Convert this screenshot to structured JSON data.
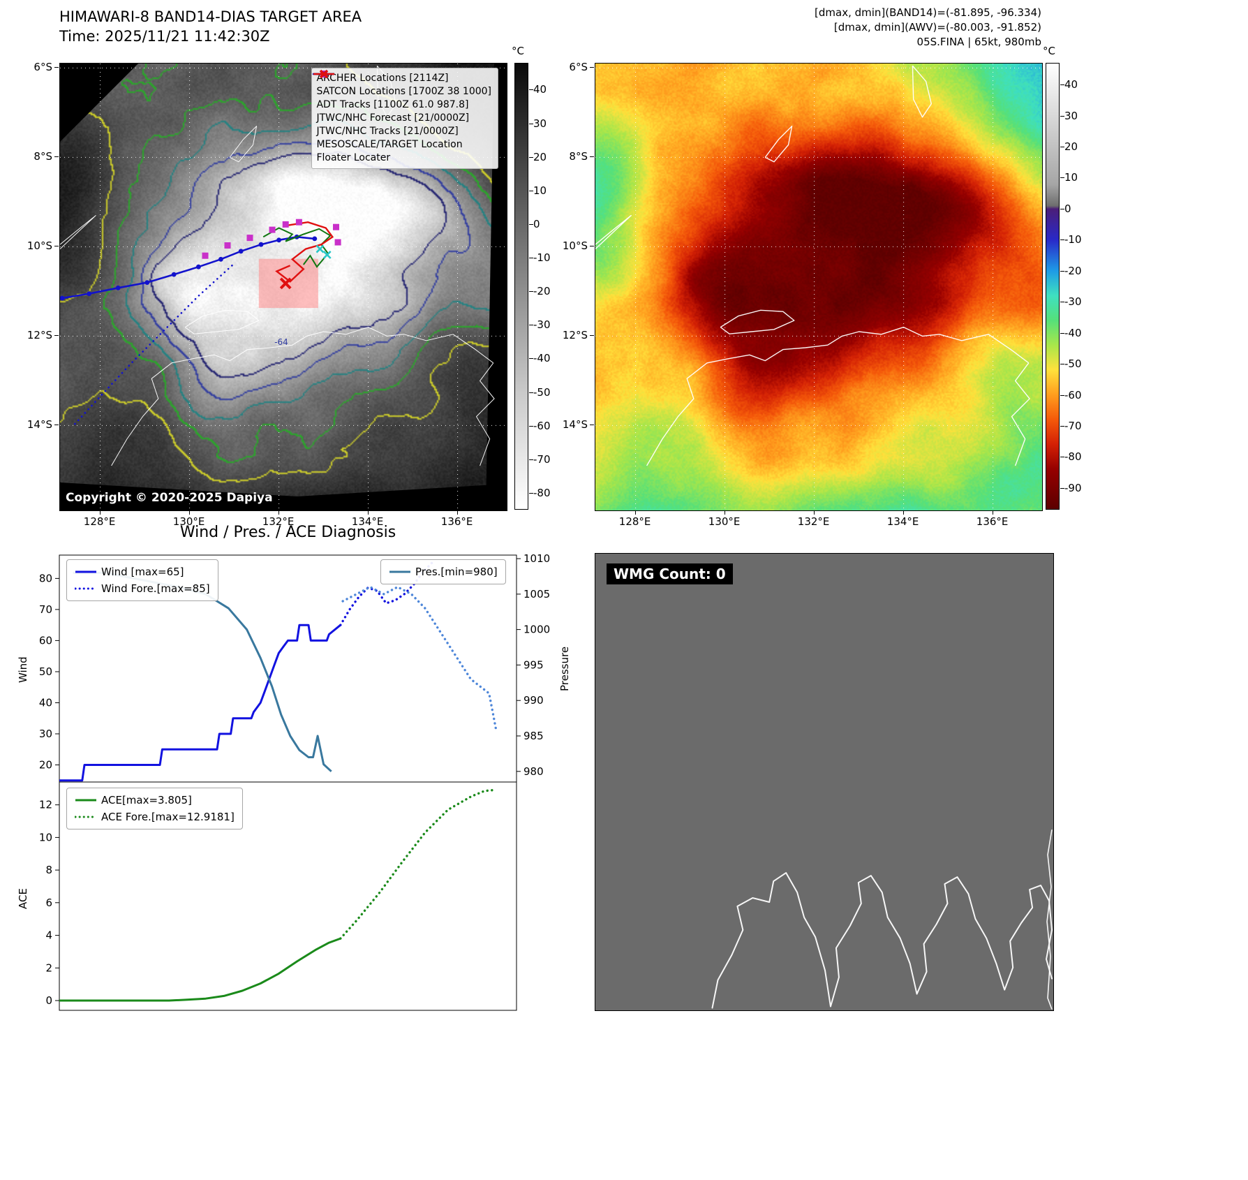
{
  "panel_band14": {
    "title": "HIMAWARI-8 BAND14-DIAS TARGET AREA",
    "time_label": "Time: 2025/11/21 11:42:30Z",
    "copyright": "Copyright © 2020-2025 Dapiya",
    "lon_range": [
      127.1,
      137.1
    ],
    "lat_range": [
      5.9,
      15.9
    ],
    "x_ticks": [
      "128°E",
      "130°E",
      "132°E",
      "134°E",
      "136°E"
    ],
    "x_tick_lons": [
      128,
      130,
      132,
      134,
      136
    ],
    "y_ticks": [
      "6°S",
      "8°S",
      "10°S",
      "12°S",
      "14°S"
    ],
    "y_tick_lats": [
      6,
      8,
      10,
      12,
      14
    ],
    "colorbar": {
      "unit": "°C",
      "vmax": 48,
      "vmin": -85,
      "ticks": [
        40,
        30,
        20,
        10,
        0,
        -10,
        -20,
        -30,
        -40,
        -50,
        -60,
        -70,
        -80
      ],
      "stops": [
        [
          48,
          "#0a0a0a"
        ],
        [
          10,
          "#555555"
        ],
        [
          -20,
          "#8f8f8f"
        ],
        [
          -50,
          "#c9c9c9"
        ],
        [
          -85,
          "#ffffff"
        ]
      ]
    },
    "legend": [
      {
        "label": "ARCHER Locations [2114Z]",
        "marker": "square",
        "color": "#c930c9"
      },
      {
        "label": "SATCON Locations [1700Z 38 1000]",
        "marker": "x",
        "color": "#28c8c8"
      },
      {
        "label": "ADT Tracks [1100Z 61.0 987.8]",
        "marker": "line",
        "color": "#117711"
      },
      {
        "label": "JTWC/NHC Forecast [21/0000Z]",
        "marker": "dotted",
        "color": "#1212cc"
      },
      {
        "label": "JTWC/NHC Tracks [21/0000Z]",
        "marker": "line-dot",
        "color": "#1212cc"
      },
      {
        "label": "MESOSCALE/TARGET Location",
        "marker": "x-bold",
        "color": "#e01010"
      },
      {
        "label": "Floater Locater",
        "marker": "line",
        "color": "#e01010"
      }
    ],
    "contour_labels": [
      {
        "text": "-64",
        "lon": 131.9,
        "lat": 12.2
      }
    ],
    "tracks": {
      "jtwc_track": [
        [
          127.15,
          11.15
        ],
        [
          127.75,
          11.05
        ],
        [
          128.4,
          10.92
        ],
        [
          129.05,
          10.8
        ],
        [
          129.65,
          10.62
        ],
        [
          130.2,
          10.45
        ],
        [
          130.7,
          10.28
        ],
        [
          131.15,
          10.1
        ],
        [
          131.6,
          9.95
        ],
        [
          132.0,
          9.85
        ],
        [
          132.4,
          9.78
        ],
        [
          132.8,
          9.82
        ]
      ],
      "jtwc_forecast": [
        [
          130.95,
          10.42
        ],
        [
          130.2,
          11.1
        ],
        [
          129.45,
          11.85
        ],
        [
          128.7,
          12.6
        ],
        [
          128.0,
          13.35
        ],
        [
          127.4,
          14.0
        ]
      ],
      "adt_track": [
        [
          131.65,
          9.78
        ],
        [
          132.0,
          9.58
        ],
        [
          132.3,
          9.72
        ],
        [
          132.15,
          9.88
        ],
        [
          132.55,
          9.72
        ],
        [
          132.9,
          9.6
        ],
        [
          133.15,
          9.75
        ],
        [
          132.95,
          9.95
        ],
        [
          133.1,
          10.15
        ],
        [
          132.85,
          10.45
        ],
        [
          132.7,
          10.2
        ],
        [
          132.55,
          10.4
        ]
      ],
      "floater": [
        [
          132.2,
          9.52
        ],
        [
          132.65,
          9.45
        ],
        [
          133.05,
          9.58
        ],
        [
          133.2,
          9.78
        ],
        [
          132.95,
          9.95
        ],
        [
          132.6,
          10.05
        ],
        [
          132.3,
          10.28
        ],
        [
          132.55,
          10.5
        ],
        [
          132.25,
          10.78
        ],
        [
          131.95,
          10.55
        ],
        [
          132.25,
          10.42
        ]
      ],
      "archer_points": [
        [
          130.35,
          10.2
        ],
        [
          130.85,
          9.97
        ],
        [
          131.35,
          9.8
        ],
        [
          131.85,
          9.62
        ],
        [
          132.15,
          9.5
        ],
        [
          132.45,
          9.45
        ],
        [
          133.28,
          9.56
        ],
        [
          133.32,
          9.9
        ]
      ],
      "satcon_points": [
        [
          132.92,
          10.05
        ],
        [
          133.08,
          10.18
        ]
      ],
      "target_x": [
        132.15,
        10.82
      ],
      "target_rect": [
        131.55,
        10.27,
        132.88,
        11.37
      ]
    }
  },
  "panel_awv": {
    "header_lines": [
      "[dmax, dmin](BAND14)=(-81.895, -96.334)",
      "[dmax, dmin](AWV)=(-80.003, -91.852)",
      "05S.FINA | 65kt, 980mb"
    ],
    "x_ticks": [
      "128°E",
      "130°E",
      "132°E",
      "134°E",
      "136°E"
    ],
    "x_tick_lons": [
      128,
      130,
      132,
      134,
      136
    ],
    "y_ticks": [
      "6°S",
      "8°S",
      "10°S",
      "12°S",
      "14°S"
    ],
    "y_tick_lats": [
      6,
      8,
      10,
      12,
      14
    ],
    "colorbar": {
      "unit": "°C",
      "vmax": 47,
      "vmin": -97,
      "ticks": [
        40,
        30,
        20,
        10,
        0,
        -10,
        -20,
        -30,
        -40,
        -50,
        -60,
        -70,
        -80,
        -90
      ],
      "stops": [
        [
          47,
          "#ffffff"
        ],
        [
          8,
          "#a6a6a6"
        ],
        [
          1,
          "#6e6e6e"
        ],
        [
          0,
          "#4b1e78"
        ],
        [
          -10,
          "#2929c8"
        ],
        [
          -20,
          "#1e9be6"
        ],
        [
          -28,
          "#3fe0c0"
        ],
        [
          -36,
          "#55e07a"
        ],
        [
          -44,
          "#a8e64a"
        ],
        [
          -52,
          "#ffe23c"
        ],
        [
          -60,
          "#ff9e1e"
        ],
        [
          -68,
          "#f55a0a"
        ],
        [
          -76,
          "#d42105"
        ],
        [
          -84,
          "#960000"
        ],
        [
          -97,
          "#5c0000"
        ]
      ]
    }
  },
  "diagnosis": {
    "title": "Wind / Pres. / ACE Diagnosis",
    "ylabel_wind": "Wind",
    "ylabel_pressure": "Pressure",
    "ylabel_ace": "ACE",
    "legends": {
      "wind": [
        {
          "label": "Wind [max=65]",
          "style": "solid",
          "color": "#1212e0"
        },
        {
          "label": "Wind Fore.[max=85]",
          "style": "dotted",
          "color": "#1212e0"
        }
      ],
      "pres": [
        {
          "label": "Pres.[min=980]",
          "style": "solid",
          "color": "#39789e"
        }
      ],
      "ace": [
        {
          "label": "ACE[max=3.805]",
          "style": "solid",
          "color": "#1a8a1a"
        },
        {
          "label": "ACE Fore.[max=12.9181]",
          "style": "dotted",
          "color": "#1a8a1a"
        }
      ]
    }
  },
  "wmg": {
    "label": "WMG Count: 0",
    "panel_color": "#6b6b6b"
  },
  "chart_data": [
    {
      "type": "line",
      "title": "Wind / Pres. / ACE Diagnosis",
      "xlim": [
        0,
        1
      ],
      "ylabel_left": "Wind",
      "ylabel_right": "Pressure",
      "ylim_left": [
        14.5,
        87.5
      ],
      "ylim_right": [
        978.5,
        1010.5
      ],
      "yticks_left": [
        20,
        30,
        40,
        50,
        60,
        70,
        80
      ],
      "yticks_right": [
        980,
        985,
        990,
        995,
        1000,
        1005,
        1010
      ],
      "grid": false,
      "series": [
        {
          "name": "Wind [max=65]",
          "axis": "left",
          "style": "solid",
          "color": "#1212e0",
          "x": [
            0.0,
            0.05,
            0.055,
            0.1,
            0.105,
            0.22,
            0.225,
            0.345,
            0.35,
            0.375,
            0.38,
            0.42,
            0.425,
            0.44,
            0.45,
            0.46,
            0.47,
            0.48,
            0.49,
            0.5,
            0.52,
            0.525,
            0.545,
            0.55,
            0.585,
            0.59,
            0.615
          ],
          "y": [
            15,
            15,
            20,
            20,
            20,
            20,
            25,
            25,
            30,
            30,
            35,
            35,
            37,
            40,
            44,
            48,
            52,
            56,
            58,
            60,
            60,
            65,
            65,
            60,
            60,
            62,
            65
          ]
        },
        {
          "name": "Wind Fore.[max=85]",
          "axis": "left",
          "style": "dotted",
          "color": "#1212e0",
          "x": [
            0.615,
            0.635,
            0.655,
            0.675,
            0.695,
            0.715,
            0.735,
            0.755,
            0.775,
            0.795,
            0.815
          ],
          "y": [
            65,
            70,
            74,
            77,
            76,
            72,
            73,
            75,
            78,
            82,
            85
          ]
        },
        {
          "name": "Pres.[min=980]",
          "axis": "right",
          "style": "solid",
          "color": "#39789e",
          "x": [
            0.03,
            0.1,
            0.18,
            0.26,
            0.32,
            0.37,
            0.41,
            0.44,
            0.465,
            0.485,
            0.505,
            0.525,
            0.545,
            0.555,
            0.565,
            0.578,
            0.595
          ],
          "y": [
            1008,
            1008,
            1007,
            1006,
            1005,
            1003,
            1000,
            996,
            992,
            988,
            985,
            983,
            982,
            982,
            985,
            981,
            980
          ]
        },
        {
          "name": "Pres. Fore.",
          "axis": "right",
          "style": "dotted",
          "color": "#4d86d9",
          "x": [
            0.62,
            0.65,
            0.68,
            0.71,
            0.74,
            0.77,
            0.8,
            0.82,
            0.84,
            0.86,
            0.88,
            0.9,
            0.92,
            0.94,
            0.955
          ],
          "y": [
            1004,
            1005,
            1006,
            1005,
            1006,
            1005,
            1003,
            1001,
            999,
            997,
            995,
            993,
            992,
            991,
            986
          ]
        }
      ]
    },
    {
      "type": "line",
      "xlim": [
        0,
        1
      ],
      "ylabel_left": "ACE",
      "ylim_left": [
        -0.6,
        13.4
      ],
      "yticks_left": [
        0,
        2,
        4,
        6,
        8,
        10,
        12
      ],
      "grid": false,
      "series": [
        {
          "name": "ACE[max=3.805]",
          "style": "solid",
          "color": "#1a8a1a",
          "x": [
            0,
            0.06,
            0.12,
            0.18,
            0.24,
            0.28,
            0.32,
            0.36,
            0.4,
            0.44,
            0.48,
            0.52,
            0.56,
            0.59,
            0.615
          ],
          "y": [
            0,
            0,
            0,
            0,
            0,
            0.05,
            0.12,
            0.28,
            0.6,
            1.05,
            1.65,
            2.4,
            3.1,
            3.55,
            3.805
          ]
        },
        {
          "name": "ACE Fore.[max=12.9181]",
          "style": "dotted",
          "color": "#1a8a1a",
          "x": [
            0.615,
            0.65,
            0.7,
            0.75,
            0.8,
            0.85,
            0.9,
            0.93,
            0.955
          ],
          "y": [
            3.805,
            4.9,
            6.6,
            8.5,
            10.3,
            11.7,
            12.5,
            12.85,
            12.92
          ]
        }
      ]
    }
  ]
}
